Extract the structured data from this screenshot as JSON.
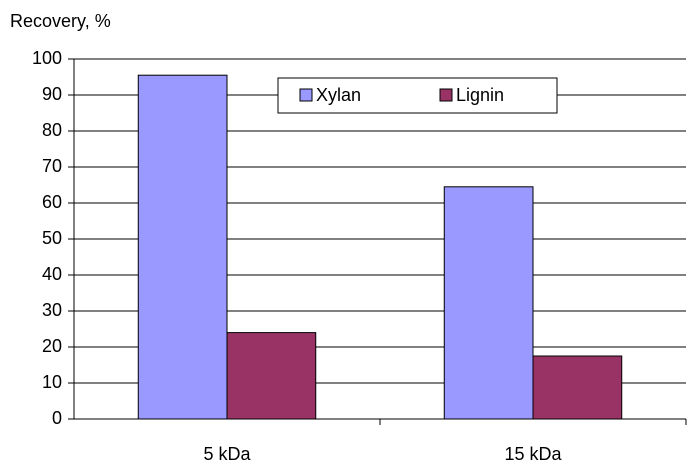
{
  "chart_data": {
    "type": "bar",
    "y_label": "Recovery, %",
    "categories": [
      "5 kDa",
      "15 kDa"
    ],
    "series": [
      {
        "name": "Xylan",
        "color": "#9999ff",
        "values": [
          95.5,
          64.5
        ]
      },
      {
        "name": "Lignin",
        "color": "#993366",
        "values": [
          24,
          17.5
        ]
      }
    ],
    "ylim": [
      0,
      100
    ],
    "yticks": [
      0,
      10,
      20,
      30,
      40,
      50,
      60,
      70,
      80,
      90,
      100
    ],
    "grid": true
  }
}
